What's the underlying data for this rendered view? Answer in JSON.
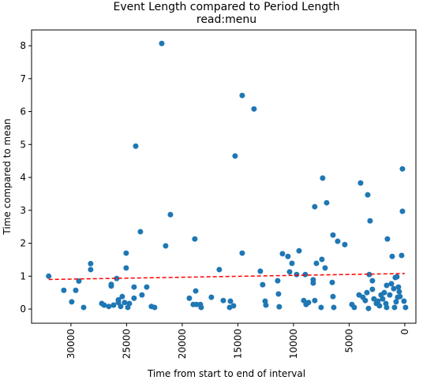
{
  "chart_data": {
    "type": "scatter",
    "title": "Event Length compared to Period Length",
    "subtitle": "read:menu",
    "x_label": "Time from start to end of interval",
    "y_label": "Time compared to mean",
    "color": "#1f77b4",
    "x": [
      32000,
      30640,
      29930,
      29570,
      29290,
      28860,
      28230,
      28230,
      27230,
      27020,
      26600,
      26380,
      26380,
      26170,
      25890,
      25740,
      25740,
      25530,
      25390,
      25180,
      25040,
      25040,
      24890,
      24750,
      24330,
      24330,
      24180,
      23760,
      23620,
      23190,
      22770,
      22480,
      21840,
      21490,
      21060,
      19360,
      19010,
      18870,
      18790,
      18720,
      18370,
      18300,
      17380,
      16670,
      16310,
      15740,
      15670,
      15390,
      15250,
      14610,
      14610,
      13550,
      12980,
      12770,
      12550,
      12480,
      11420,
      11350,
      11280,
      10990,
      10500,
      10350,
      10140,
      9720,
      9500,
      9080,
      8940,
      8870,
      8650,
      8230,
      8230,
      8090,
      8090,
      7940,
      7520,
      7450,
      7380,
      7160,
      7020,
      6520,
      6450,
      6450,
      6380,
      6030,
      5390,
      4750,
      4540,
      4110,
      3970,
      3760,
      3550,
      3400,
      3330,
      3260,
      3190,
      3120,
      2910,
      2910,
      2770,
      2550,
      2410,
      2270,
      2130,
      1990,
      1840,
      1700,
      1630,
      1630,
      1560,
      1350,
      1130,
      990,
      920,
      780,
      710,
      640,
      570,
      500,
      430,
      280,
      210,
      210,
      70,
      -70,
      850,
      1200
    ],
    "values": [
      1.0,
      0.57,
      0.22,
      0.57,
      0.85,
      0.05,
      1.38,
      1.2,
      0.17,
      0.12,
      0.08,
      0.7,
      0.75,
      0.12,
      0.93,
      0.28,
      0.2,
      0.08,
      0.38,
      0.2,
      1.7,
      1.25,
      0.05,
      0.17,
      0.67,
      0.33,
      4.95,
      2.35,
      0.43,
      0.67,
      0.08,
      0.05,
      8.07,
      1.92,
      2.87,
      0.33,
      0.14,
      2.13,
      0.55,
      0.14,
      0.14,
      0.05,
      0.36,
      1.2,
      0.26,
      0.05,
      0.24,
      0.1,
      4.65,
      6.49,
      1.7,
      6.08,
      1.15,
      0.74,
      0.24,
      0.12,
      0.86,
      0.46,
      0.07,
      1.68,
      1.6,
      1.13,
      1.39,
      1.05,
      1.77,
      0.26,
      1.05,
      0.14,
      0.2,
      0.89,
      0.79,
      3.11,
      0.26,
      1.39,
      0.05,
      1.51,
      3.98,
      1.25,
      3.23,
      0.81,
      0.38,
      2.25,
      0.05,
      2.06,
      1.96,
      0.14,
      0.05,
      0.43,
      3.83,
      0.36,
      0.26,
      0.5,
      3.47,
      0.02,
      1.05,
      2.68,
      0.86,
      0.6,
      0.31,
      0.17,
      0.24,
      0.1,
      0.43,
      0.31,
      0.5,
      0.17,
      0.05,
      0.72,
      2.13,
      0.43,
      1.6,
      0.62,
      0.05,
      0.22,
      0.98,
      0.36,
      0.67,
      0.53,
      0.38,
      1.63,
      2.97,
      4.26,
      0.24,
      0.05,
      0.96,
      0.77
    ],
    "trend": {
      "x": [
        32000,
        0
      ],
      "values": [
        0.9,
        1.08
      ],
      "color": "#ff0000"
    },
    "xlim": [
      33540,
      -1000
    ],
    "ylim": [
      -0.43,
      8.48
    ],
    "xticks": [
      30000,
      25000,
      20000,
      15000,
      10000,
      5000,
      0
    ],
    "yticks": [
      0,
      1,
      2,
      3,
      4,
      5,
      6,
      7,
      8
    ]
  }
}
